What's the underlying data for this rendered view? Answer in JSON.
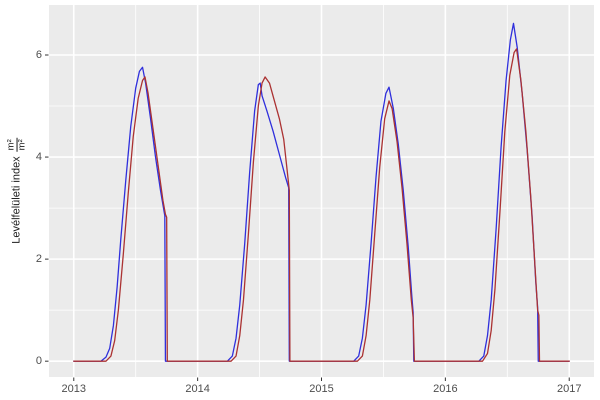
{
  "axes": {
    "y_title_text": "Levélfelületi index",
    "y_title_frac_num": "m²",
    "y_title_frac_den": "m²",
    "x_tick_labels": [
      "2013",
      "2014",
      "2015",
      "2016",
      "2017"
    ],
    "y_tick_labels": [
      "0",
      "2",
      "4",
      "6"
    ]
  },
  "style": {
    "panel_bg": "#ebebeb",
    "grid_color": "#ffffff",
    "tick_mark_color": "#333333",
    "tick_label_color": "#4d4d4d",
    "blue_line_color": "#2f2fdc",
    "red_line_color": "#ab3232"
  },
  "chart_data": {
    "type": "line",
    "title": "",
    "xlabel": "",
    "ylabel": "Levélfelületi index (m²/m²)",
    "legend": "none",
    "grid": "ggplot style: white major and minor gridlines on gray panel",
    "xlim": [
      2012.8,
      2017.2
    ],
    "ylim": [
      -0.31,
      6.98
    ],
    "x_ticks": [
      2013,
      2014,
      2015,
      2016,
      2017
    ],
    "x_minor_ticks": [
      2013.5,
      2014.5,
      2015.5,
      2016.5
    ],
    "y_ticks": [
      0,
      2,
      4,
      6
    ],
    "y_minor_ticks": [
      1,
      3,
      5,
      7
    ],
    "annual_peaks": {
      "blue": [
        5.76,
        5.45,
        5.37,
        6.62
      ],
      "red": [
        5.57,
        5.57,
        5.1,
        6.12
      ]
    },
    "series": [
      {
        "name": "series-blue",
        "color": "#2f2fdc",
        "points": [
          [
            2013.0,
            0
          ],
          [
            2013.22,
            0
          ],
          [
            2013.26,
            0.08
          ],
          [
            2013.29,
            0.25
          ],
          [
            2013.32,
            0.7
          ],
          [
            2013.35,
            1.45
          ],
          [
            2013.38,
            2.4
          ],
          [
            2013.42,
            3.55
          ],
          [
            2013.46,
            4.6
          ],
          [
            2013.5,
            5.35
          ],
          [
            2013.53,
            5.68
          ],
          [
            2013.555,
            5.76
          ],
          [
            2013.58,
            5.45
          ],
          [
            2013.62,
            4.75
          ],
          [
            2013.66,
            4.0
          ],
          [
            2013.7,
            3.35
          ],
          [
            2013.735,
            2.85
          ],
          [
            2013.74,
            0
          ],
          [
            2014.0,
            0
          ],
          [
            2014.24,
            0
          ],
          [
            2014.28,
            0.1
          ],
          [
            2014.31,
            0.45
          ],
          [
            2014.34,
            1.1
          ],
          [
            2014.38,
            2.3
          ],
          [
            2014.42,
            3.7
          ],
          [
            2014.46,
            4.9
          ],
          [
            2014.49,
            5.42
          ],
          [
            2014.505,
            5.45
          ],
          [
            2014.52,
            5.2
          ],
          [
            2014.56,
            4.9
          ],
          [
            2014.61,
            4.5
          ],
          [
            2014.66,
            4.05
          ],
          [
            2014.71,
            3.6
          ],
          [
            2014.735,
            3.4
          ],
          [
            2014.74,
            0
          ],
          [
            2015.0,
            0
          ],
          [
            2015.26,
            0
          ],
          [
            2015.3,
            0.1
          ],
          [
            2015.33,
            0.45
          ],
          [
            2015.36,
            1.1
          ],
          [
            2015.4,
            2.3
          ],
          [
            2015.44,
            3.6
          ],
          [
            2015.48,
            4.7
          ],
          [
            2015.52,
            5.25
          ],
          [
            2015.545,
            5.37
          ],
          [
            2015.58,
            4.95
          ],
          [
            2015.62,
            4.25
          ],
          [
            2015.66,
            3.35
          ],
          [
            2015.7,
            2.25
          ],
          [
            2015.73,
            1.25
          ],
          [
            2015.74,
            0.95
          ],
          [
            2015.745,
            0
          ],
          [
            2016.0,
            0
          ],
          [
            2016.27,
            0
          ],
          [
            2016.31,
            0.1
          ],
          [
            2016.34,
            0.5
          ],
          [
            2016.37,
            1.2
          ],
          [
            2016.41,
            2.6
          ],
          [
            2016.45,
            4.2
          ],
          [
            2016.49,
            5.5
          ],
          [
            2016.525,
            6.3
          ],
          [
            2016.55,
            6.62
          ],
          [
            2016.58,
            6.15
          ],
          [
            2016.62,
            5.25
          ],
          [
            2016.66,
            4.15
          ],
          [
            2016.7,
            2.85
          ],
          [
            2016.73,
            1.55
          ],
          [
            2016.745,
            1.05
          ],
          [
            2016.75,
            0
          ],
          [
            2017.0,
            0
          ]
        ]
      },
      {
        "name": "series-red",
        "color": "#ab3232",
        "points": [
          [
            2013.0,
            0
          ],
          [
            2013.26,
            0
          ],
          [
            2013.3,
            0.1
          ],
          [
            2013.33,
            0.4
          ],
          [
            2013.36,
            1.0
          ],
          [
            2013.4,
            2.1
          ],
          [
            2013.44,
            3.3
          ],
          [
            2013.48,
            4.4
          ],
          [
            2013.52,
            5.15
          ],
          [
            2013.555,
            5.5
          ],
          [
            2013.575,
            5.57
          ],
          [
            2013.6,
            5.25
          ],
          [
            2013.64,
            4.55
          ],
          [
            2013.68,
            3.85
          ],
          [
            2013.72,
            3.15
          ],
          [
            2013.74,
            2.88
          ],
          [
            2013.75,
            2.82
          ],
          [
            2013.755,
            0
          ],
          [
            2014.0,
            0
          ],
          [
            2014.27,
            0
          ],
          [
            2014.31,
            0.1
          ],
          [
            2014.34,
            0.5
          ],
          [
            2014.37,
            1.2
          ],
          [
            2014.41,
            2.5
          ],
          [
            2014.45,
            3.9
          ],
          [
            2014.49,
            5.0
          ],
          [
            2014.52,
            5.45
          ],
          [
            2014.545,
            5.57
          ],
          [
            2014.58,
            5.45
          ],
          [
            2014.62,
            5.1
          ],
          [
            2014.66,
            4.75
          ],
          [
            2014.695,
            4.35
          ],
          [
            2014.72,
            3.8
          ],
          [
            2014.74,
            3.35
          ],
          [
            2014.745,
            0
          ],
          [
            2015.0,
            0
          ],
          [
            2015.29,
            0
          ],
          [
            2015.33,
            0.1
          ],
          [
            2015.36,
            0.5
          ],
          [
            2015.39,
            1.2
          ],
          [
            2015.43,
            2.5
          ],
          [
            2015.47,
            3.8
          ],
          [
            2015.51,
            4.75
          ],
          [
            2015.545,
            5.1
          ],
          [
            2015.57,
            4.95
          ],
          [
            2015.61,
            4.3
          ],
          [
            2015.65,
            3.4
          ],
          [
            2015.69,
            2.3
          ],
          [
            2015.725,
            1.2
          ],
          [
            2015.74,
            0.85
          ],
          [
            2015.75,
            0
          ],
          [
            2016.0,
            0
          ],
          [
            2016.3,
            0
          ],
          [
            2016.34,
            0.15
          ],
          [
            2016.37,
            0.6
          ],
          [
            2016.4,
            1.4
          ],
          [
            2016.44,
            2.9
          ],
          [
            2016.48,
            4.5
          ],
          [
            2016.52,
            5.6
          ],
          [
            2016.555,
            6.05
          ],
          [
            2016.575,
            6.12
          ],
          [
            2016.61,
            5.5
          ],
          [
            2016.65,
            4.5
          ],
          [
            2016.69,
            3.2
          ],
          [
            2016.72,
            2.0
          ],
          [
            2016.745,
            1.0
          ],
          [
            2016.755,
            0.9
          ],
          [
            2016.76,
            0
          ],
          [
            2017.0,
            0
          ]
        ]
      }
    ]
  }
}
